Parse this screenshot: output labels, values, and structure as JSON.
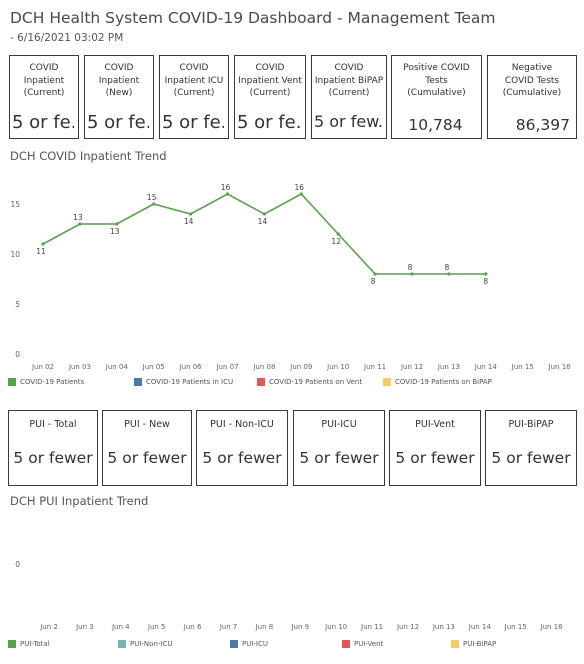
{
  "header": {
    "title": "DCH Health System COVID-19 Dashboard - Management Team",
    "subtitle": "- 6/16/2021 03:02 PM"
  },
  "kpis": [
    {
      "label": "COVID Inpatient (Current)",
      "value": "5 or fe.."
    },
    {
      "label": "COVID Inpatient (New)",
      "value": "5 or fe.."
    },
    {
      "label": "COVID Inpatient ICU (Current)",
      "value": "5 or fe.."
    },
    {
      "label": "COVID Inpatient Vent (Current)",
      "value": "5 or fe.."
    },
    {
      "label": "COVID Inpatient BiPAP (Current)",
      "value": "5 or few.."
    },
    {
      "label": "Positive COVID Tests (Cumulative)",
      "value": "10,784"
    },
    {
      "label": "Negative COVID Tests (Cumulative)",
      "value": "86,397"
    }
  ],
  "chart1": {
    "title": "DCH COVID Inpatient Trend",
    "legend": [
      {
        "label": "COVID-19 Patients",
        "color": "#59a14f"
      },
      {
        "label": "COVID-19 Patients in ICU",
        "color": "#4e79a7"
      },
      {
        "label": "COVID-19 Patients on Vent",
        "color": "#e15759"
      },
      {
        "label": "COVID-19 Patients on BiPAP",
        "color": "#f1ce63"
      }
    ]
  },
  "pui": [
    {
      "label": "PUI - Total",
      "value": "5 or fewer"
    },
    {
      "label": "PUI - New",
      "value": "5 or fewer"
    },
    {
      "label": "PUI - Non-ICU",
      "value": "5 or fewer"
    },
    {
      "label": "PUI-ICU",
      "value": "5 or fewer"
    },
    {
      "label": "PUI-Vent",
      "value": "5 or fewer"
    },
    {
      "label": "PUI-BiPAP",
      "value": "5 or fewer"
    }
  ],
  "chart2": {
    "title": "DCH PUI Inpatient Trend",
    "legend": [
      {
        "label": "PUI-Total",
        "color": "#59a14f"
      },
      {
        "label": "PUI-Non-ICU",
        "color": "#76b7b2"
      },
      {
        "label": "PUI-ICU",
        "color": "#4e79a7"
      },
      {
        "label": "PUI-Vent",
        "color": "#e15759"
      },
      {
        "label": "PUI-BiPAP",
        "color": "#f1ce63"
      }
    ]
  },
  "chart_data": [
    {
      "type": "line",
      "title": "DCH COVID Inpatient Trend",
      "x": [
        "Jun 02",
        "Jun 03",
        "Jun 04",
        "Jun 05",
        "Jun 06",
        "Jun 07",
        "Jun 08",
        "Jun 09",
        "Jun 10",
        "Jun 11",
        "Jun 12",
        "Jun 13",
        "Jun 14",
        "Jun 15",
        "Jun 16"
      ],
      "yticks": [
        0,
        5,
        10,
        15
      ],
      "ylim": [
        0,
        18
      ],
      "grid": false,
      "legend_position": "bottom",
      "series": [
        {
          "name": "COVID-19 Patients",
          "color": "#59a14f",
          "values": [
            11,
            13,
            13,
            15,
            14,
            16,
            14,
            16,
            12,
            8,
            8,
            8,
            8,
            null,
            null
          ]
        }
      ]
    },
    {
      "type": "line",
      "title": "DCH PUI Inpatient Trend",
      "x": [
        "Jun 2",
        "Jun 3",
        "Jun 4",
        "Jun 5",
        "Jun 6",
        "Jun 7",
        "Jun 8",
        "Jun 9",
        "Jun 10",
        "Jun 11",
        "Jun 12",
        "Jun 13",
        "Jun 14",
        "Jun 15",
        "Jun 16"
      ],
      "yticks": [
        0
      ],
      "grid": false,
      "legend_position": "bottom",
      "series": []
    }
  ]
}
